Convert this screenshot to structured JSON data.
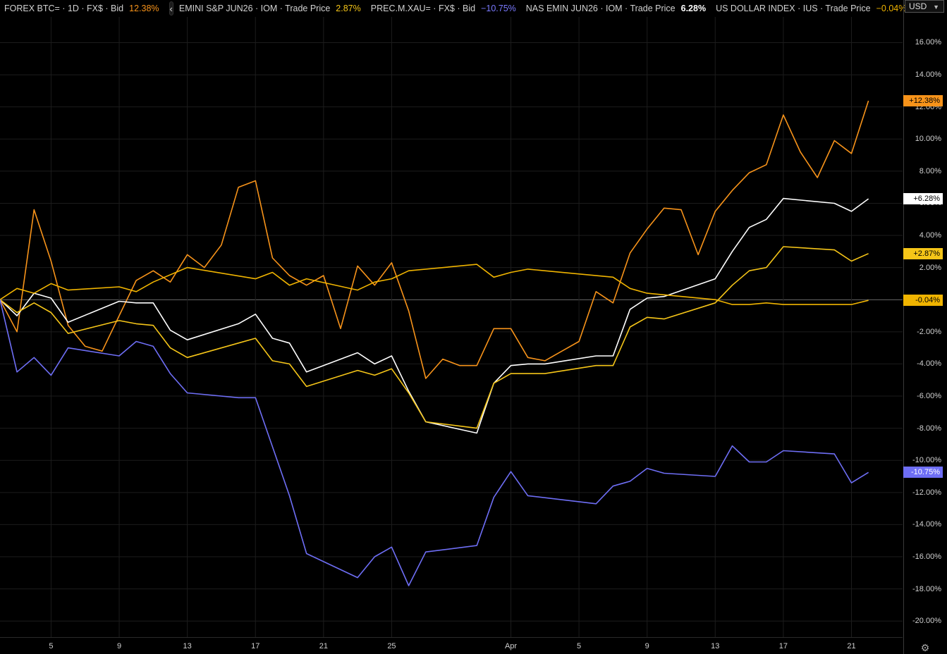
{
  "header": {
    "series": [
      {
        "label": "FOREX BTC= · 1D · FX$ · Bid",
        "value": "12.38%",
        "color": "#f7931a"
      },
      {
        "label": "EMINI S&P JUN26 · IOM · Trade Price",
        "value": "2.87%",
        "color": "#f5c518"
      },
      {
        "label": "PREC.M.XAU= · FX$ · Bid",
        "value": "−10.75%",
        "color": "#6e6ef5"
      },
      {
        "label": "NAS EMIN JUN26 · IOM · Trade Price",
        "value": "6.28%",
        "color": "#ffffff"
      },
      {
        "label": "US DOLLAR INDEX · IUS · Trade Price",
        "value": "−0.04%",
        "color": "#f0b400"
      }
    ],
    "collapse_icon": "chevron-left-icon"
  },
  "currency": {
    "label": "USD",
    "icon": "chevron-down-icon"
  },
  "settings_icon": "gear-icon",
  "chart_data": {
    "type": "line",
    "ylim": [
      -21,
      17.6
    ],
    "yticks": [
      {
        "v": 16,
        "label": "16.00%"
      },
      {
        "v": 14,
        "label": "14.00%"
      },
      {
        "v": 12,
        "label": "12.00%"
      },
      {
        "v": 10,
        "label": "10.00%"
      },
      {
        "v": 8,
        "label": "8.00%"
      },
      {
        "v": 6,
        "label": "6.00%"
      },
      {
        "v": 4,
        "label": "4.00%"
      },
      {
        "v": 2,
        "label": "2.00%"
      },
      {
        "v": 0,
        "label": ""
      },
      {
        "v": -2,
        "label": "-2.00%"
      },
      {
        "v": -4,
        "label": "-4.00%"
      },
      {
        "v": -6,
        "label": "-6.00%"
      },
      {
        "v": -8,
        "label": "-8.00%"
      },
      {
        "v": -10,
        "label": "-10.00%"
      },
      {
        "v": -12,
        "label": "-12.00%"
      },
      {
        "v": -14,
        "label": "-14.00%"
      },
      {
        "v": -16,
        "label": "-16.00%"
      },
      {
        "v": -18,
        "label": "-18.00%"
      },
      {
        "v": -20,
        "label": "-20.00%"
      }
    ],
    "xticks": [
      {
        "i": 3,
        "label": "5"
      },
      {
        "i": 7,
        "label": "9"
      },
      {
        "i": 11,
        "label": "13"
      },
      {
        "i": 15,
        "label": "17"
      },
      {
        "i": 19,
        "label": "21"
      },
      {
        "i": 23,
        "label": "25"
      },
      {
        "i": 30,
        "label": "Apr"
      },
      {
        "i": 34,
        "label": "5"
      },
      {
        "i": 38,
        "label": "9"
      },
      {
        "i": 42,
        "label": "13"
      },
      {
        "i": 46,
        "label": "17"
      },
      {
        "i": 50,
        "label": "21"
      }
    ],
    "series": [
      {
        "name": "FOREX BTC=",
        "color": "#f7931a",
        "last_label": "+12.38%",
        "values": [
          [
            0,
            0
          ],
          [
            1,
            -2
          ],
          [
            2,
            5.6
          ],
          [
            3,
            2.4
          ],
          [
            4,
            -1.6
          ],
          [
            5,
            -2.9
          ],
          [
            6,
            -3.2
          ],
          [
            7,
            -1
          ],
          [
            8,
            1.2
          ],
          [
            9,
            1.8
          ],
          [
            10,
            1.1
          ],
          [
            11,
            2.8
          ],
          [
            12,
            2
          ],
          [
            13,
            3.4
          ],
          [
            14,
            7
          ],
          [
            15,
            7.4
          ],
          [
            16,
            2.6
          ],
          [
            17,
            1.5
          ],
          [
            18,
            0.9
          ],
          [
            19,
            1.5
          ],
          [
            20,
            -1.8
          ],
          [
            21,
            2.1
          ],
          [
            22,
            0.9
          ],
          [
            23,
            2.3
          ],
          [
            24,
            -0.7
          ],
          [
            25,
            -4.9
          ],
          [
            26,
            -3.7
          ],
          [
            27,
            -4.1
          ],
          [
            28,
            -4.1
          ],
          [
            29,
            -1.8
          ],
          [
            30,
            -1.8
          ],
          [
            31,
            -3.6
          ],
          [
            32,
            -3.8
          ],
          [
            33,
            -3.2
          ],
          [
            34,
            -2.6
          ],
          [
            35,
            0.5
          ],
          [
            36,
            -0.2
          ],
          [
            37,
            2.9
          ],
          [
            38,
            4.4
          ],
          [
            39,
            5.7
          ],
          [
            40,
            5.6
          ],
          [
            41,
            2.8
          ],
          [
            42,
            5.5
          ],
          [
            43,
            6.8
          ],
          [
            44,
            7.9
          ],
          [
            45,
            8.4
          ],
          [
            46,
            11.5
          ],
          [
            47,
            9.2
          ],
          [
            48,
            7.6
          ],
          [
            49,
            9.9
          ],
          [
            50,
            9.1
          ],
          [
            51,
            12.38
          ]
        ]
      },
      {
        "name": "NAS EMIN JUN26",
        "color": "#ffffff",
        "last_label": "+6.28%",
        "values": [
          [
            0,
            0
          ],
          [
            1,
            -1
          ],
          [
            2,
            0.4
          ],
          [
            3,
            0.1
          ],
          [
            4,
            -1.4
          ],
          [
            7,
            -0.1
          ],
          [
            8,
            -0.2
          ],
          [
            9,
            -0.2
          ],
          [
            10,
            -1.9
          ],
          [
            11,
            -2.5
          ],
          [
            14,
            -1.5
          ],
          [
            15,
            -0.9
          ],
          [
            16,
            -2.4
          ],
          [
            17,
            -2.7
          ],
          [
            18,
            -4.5
          ],
          [
            21,
            -3.3
          ],
          [
            22,
            -4
          ],
          [
            23,
            -3.5
          ],
          [
            24,
            -5.7
          ],
          [
            25,
            -7.6
          ],
          [
            28,
            -8.3
          ],
          [
            29,
            -5.2
          ],
          [
            30,
            -4.1
          ],
          [
            31,
            -4
          ],
          [
            32,
            -4
          ],
          [
            35,
            -3.5
          ],
          [
            36,
            -3.5
          ],
          [
            37,
            -0.6
          ],
          [
            38,
            0.1
          ],
          [
            39,
            0.2
          ],
          [
            42,
            1.3
          ],
          [
            43,
            3
          ],
          [
            44,
            4.5
          ],
          [
            45,
            5
          ],
          [
            46,
            6.3
          ],
          [
            49,
            6
          ],
          [
            50,
            5.5
          ],
          [
            51,
            6.28
          ]
        ]
      },
      {
        "name": "EMINI S&P JUN26",
        "color": "#f5c518",
        "last_label": "+2.87%",
        "values": [
          [
            0,
            0
          ],
          [
            1,
            -0.8
          ],
          [
            2,
            -0.2
          ],
          [
            3,
            -0.8
          ],
          [
            4,
            -2.1
          ],
          [
            7,
            -1.3
          ],
          [
            8,
            -1.5
          ],
          [
            9,
            -1.6
          ],
          [
            10,
            -3
          ],
          [
            11,
            -3.6
          ],
          [
            14,
            -2.7
          ],
          [
            15,
            -2.4
          ],
          [
            16,
            -3.8
          ],
          [
            17,
            -4
          ],
          [
            18,
            -5.4
          ],
          [
            21,
            -4.4
          ],
          [
            22,
            -4.7
          ],
          [
            23,
            -4.3
          ],
          [
            24,
            -5.8
          ],
          [
            25,
            -7.6
          ],
          [
            28,
            -8
          ],
          [
            29,
            -5.2
          ],
          [
            30,
            -4.6
          ],
          [
            31,
            -4.6
          ],
          [
            32,
            -4.6
          ],
          [
            35,
            -4.1
          ],
          [
            36,
            -4.1
          ],
          [
            37,
            -1.7
          ],
          [
            38,
            -1.1
          ],
          [
            39,
            -1.2
          ],
          [
            42,
            -0.2
          ],
          [
            43,
            0.9
          ],
          [
            44,
            1.8
          ],
          [
            45,
            2
          ],
          [
            46,
            3.3
          ],
          [
            49,
            3.1
          ],
          [
            50,
            2.4
          ],
          [
            51,
            2.87
          ]
        ]
      },
      {
        "name": "US DOLLAR INDEX",
        "color": "#f0b400",
        "last_label": "-0.04%",
        "values": [
          [
            0,
            0
          ],
          [
            1,
            0.7
          ],
          [
            2,
            0.4
          ],
          [
            3,
            1
          ],
          [
            4,
            0.6
          ],
          [
            7,
            0.8
          ],
          [
            8,
            0.5
          ],
          [
            9,
            1.1
          ],
          [
            11,
            2
          ],
          [
            15,
            1.3
          ],
          [
            16,
            1.7
          ],
          [
            17,
            0.9
          ],
          [
            18,
            1.3
          ],
          [
            21,
            0.6
          ],
          [
            22,
            1.1
          ],
          [
            23,
            1.3
          ],
          [
            24,
            1.8
          ],
          [
            28,
            2.2
          ],
          [
            29,
            1.4
          ],
          [
            30,
            1.7
          ],
          [
            31,
            1.9
          ],
          [
            36,
            1.4
          ],
          [
            37,
            0.7
          ],
          [
            38,
            0.4
          ],
          [
            42,
            0
          ],
          [
            43,
            -0.3
          ],
          [
            44,
            -0.3
          ],
          [
            45,
            -0.2
          ],
          [
            46,
            -0.3
          ],
          [
            50,
            -0.3
          ],
          [
            51,
            -0.04
          ]
        ]
      },
      {
        "name": "PREC.M.XAU=",
        "color": "#6e6ef5",
        "last_label": "-10.75%",
        "values": [
          [
            0,
            0
          ],
          [
            1,
            -4.5
          ],
          [
            2,
            -3.6
          ],
          [
            3,
            -4.7
          ],
          [
            4,
            -3
          ],
          [
            7,
            -3.5
          ],
          [
            8,
            -2.6
          ],
          [
            9,
            -2.9
          ],
          [
            10,
            -4.6
          ],
          [
            11,
            -5.8
          ],
          [
            14,
            -6.1
          ],
          [
            15,
            -6.1
          ],
          [
            17,
            -12.2
          ],
          [
            18,
            -15.8
          ],
          [
            21,
            -17.3
          ],
          [
            22,
            -16
          ],
          [
            23,
            -15.4
          ],
          [
            24,
            -17.8
          ],
          [
            25,
            -15.7
          ],
          [
            28,
            -15.3
          ],
          [
            29,
            -12.3
          ],
          [
            30,
            -10.7
          ],
          [
            31,
            -12.2
          ],
          [
            35,
            -12.7
          ],
          [
            36,
            -11.6
          ],
          [
            37,
            -11.3
          ],
          [
            38,
            -10.5
          ],
          [
            39,
            -10.8
          ],
          [
            42,
            -11
          ],
          [
            43,
            -9.1
          ],
          [
            44,
            -10.1
          ],
          [
            45,
            -10.1
          ],
          [
            46,
            -9.4
          ],
          [
            49,
            -9.6
          ],
          [
            50,
            -11.4
          ],
          [
            51,
            -10.75
          ]
        ]
      }
    ]
  }
}
